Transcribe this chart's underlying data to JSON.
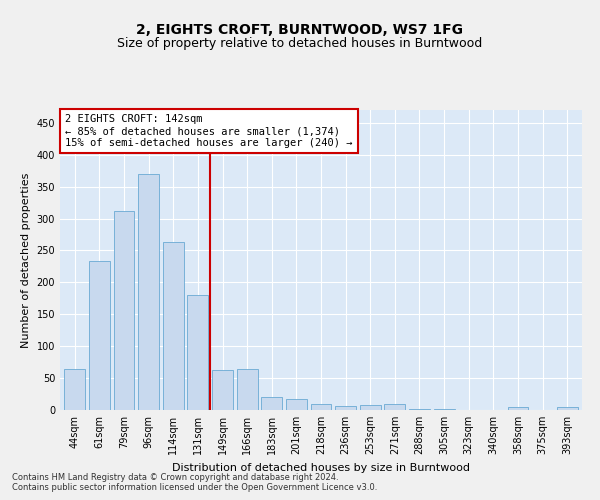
{
  "title": "2, EIGHTS CROFT, BURNTWOOD, WS7 1FG",
  "subtitle": "Size of property relative to detached houses in Burntwood",
  "xlabel": "Distribution of detached houses by size in Burntwood",
  "ylabel": "Number of detached properties",
  "categories": [
    "44sqm",
    "61sqm",
    "79sqm",
    "96sqm",
    "114sqm",
    "131sqm",
    "149sqm",
    "166sqm",
    "183sqm",
    "201sqm",
    "218sqm",
    "236sqm",
    "253sqm",
    "271sqm",
    "288sqm",
    "305sqm",
    "323sqm",
    "340sqm",
    "358sqm",
    "375sqm",
    "393sqm"
  ],
  "values": [
    65,
    234,
    312,
    370,
    263,
    180,
    63,
    65,
    20,
    18,
    10,
    6,
    8,
    10,
    2,
    1,
    0,
    0,
    4,
    0,
    4
  ],
  "bar_color": "#c8d9ee",
  "bar_edge_color": "#6aaad4",
  "vline_x_index": 5.5,
  "vline_color": "#cc0000",
  "annotation_text": "2 EIGHTS CROFT: 142sqm\n← 85% of detached houses are smaller (1,374)\n15% of semi-detached houses are larger (240) →",
  "annotation_box_color": "#cc0000",
  "ylim": [
    0,
    470
  ],
  "yticks": [
    0,
    50,
    100,
    150,
    200,
    250,
    300,
    350,
    400,
    450
  ],
  "footer_line1": "Contains HM Land Registry data © Crown copyright and database right 2024.",
  "footer_line2": "Contains public sector information licensed under the Open Government Licence v3.0.",
  "fig_bg_color": "#f0f0f0",
  "plot_bg_color": "#dce9f7",
  "grid_color": "#ffffff",
  "title_fontsize": 10,
  "subtitle_fontsize": 9,
  "annot_fontsize": 7.5,
  "ylabel_fontsize": 8,
  "xlabel_fontsize": 8,
  "tick_fontsize": 7,
  "footer_fontsize": 6
}
